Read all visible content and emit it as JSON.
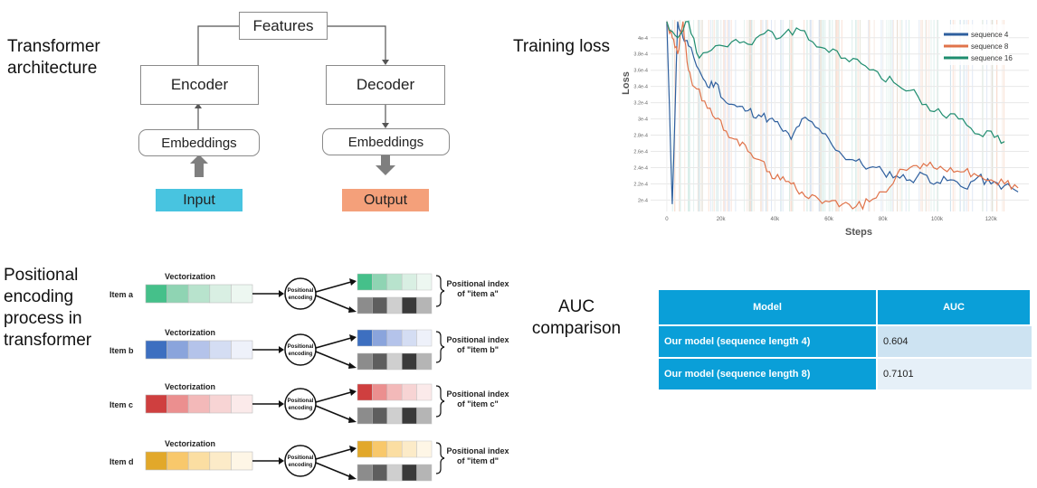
{
  "sections": {
    "architecture": "Transformer architecture",
    "loss": "Training loss",
    "positional": "Positional encoding process in transformer",
    "auc": "AUC comparison"
  },
  "arch": {
    "features": "Features",
    "encoder": "Encoder",
    "decoder": "Decoder",
    "embeddings_left": "Embeddings",
    "embeddings_right": "Embeddings",
    "input": "Input",
    "output": "Output",
    "input_color": "#48c4e0",
    "output_color": "#f4a07a"
  },
  "chart_data": {
    "type": "line",
    "xlabel": "Steps",
    "ylabel": "Loss",
    "x_ticks": [
      "0",
      "20k",
      "40k",
      "60k",
      "80k",
      "100k",
      "120k"
    ],
    "y_ticks": [
      "2e-4",
      "2.2e-4",
      "2.4e-4",
      "2.6e-4",
      "2.8e-4",
      "3e-4",
      "3.2e-4",
      "3.4e-4",
      "3.6e-4",
      "3.8e-4",
      "4e-4"
    ],
    "xlim": [
      -6000,
      134000
    ],
    "ylim": [
      0.000186,
      0.000422
    ],
    "legend_position": "top-right",
    "series": [
      {
        "name": "sequence 4",
        "color": "#2e5f9e",
        "x": [
          0,
          2000,
          4000,
          6000,
          8000,
          12000,
          15000,
          18000,
          22000,
          26000,
          30000,
          34000,
          38000,
          42000,
          46000,
          50000,
          55000,
          60000,
          65000,
          70000,
          75000,
          80000,
          85000,
          90000,
          95000,
          100000,
          105000,
          110000,
          115000,
          120000,
          125000,
          130000
        ],
        "y": [
          0.00042,
          0.000195,
          0.00042,
          0.0004,
          0.00039,
          0.00036,
          0.00034,
          0.000345,
          0.00032,
          0.000315,
          0.00031,
          0.000305,
          0.0003,
          0.00029,
          0.000275,
          0.0003,
          0.00029,
          0.000275,
          0.000255,
          0.000248,
          0.00024,
          0.000235,
          0.00023,
          0.000225,
          0.000232,
          0.000222,
          0.000225,
          0.000215,
          0.000228,
          0.00022,
          0.000218,
          0.00021
        ]
      },
      {
        "name": "sequence 8",
        "color": "#e0734a",
        "x": [
          0,
          2000,
          4000,
          6000,
          8000,
          10000,
          14000,
          18000,
          22000,
          26000,
          30000,
          34000,
          38000,
          42000,
          46000,
          50000,
          55000,
          60000,
          65000,
          70000,
          75000,
          80000,
          85000,
          90000,
          95000,
          100000,
          105000,
          110000,
          115000,
          120000,
          125000,
          130000
        ],
        "y": [
          0.00042,
          0.0004,
          0.00038,
          0.00042,
          0.00036,
          0.00034,
          0.000322,
          0.0003,
          0.000285,
          0.000275,
          0.00026,
          0.00025,
          0.000235,
          0.000225,
          0.00022,
          0.00021,
          0.000205,
          0.000198,
          0.000195,
          0.000192,
          0.000198,
          0.00021,
          0.00023,
          0.00024,
          0.000245,
          0.000238,
          0.00024,
          0.000235,
          0.00023,
          0.000225,
          0.00022,
          0.000215
        ]
      },
      {
        "name": "sequence 16",
        "color": "#1e8c6e",
        "x": [
          0,
          4000,
          8000,
          12000,
          18000,
          24000,
          30000,
          36000,
          42000,
          48000,
          54000,
          60000,
          66000,
          72000,
          78000,
          84000,
          90000,
          96000,
          102000,
          108000,
          114000,
          120000,
          125000
        ],
        "y": [
          0.00042,
          0.0004,
          0.00042,
          0.000375,
          0.00039,
          0.000395,
          0.000392,
          0.000405,
          0.0004,
          0.000412,
          0.000395,
          0.000382,
          0.000375,
          0.000368,
          0.000358,
          0.000345,
          0.000335,
          0.000318,
          0.000305,
          0.0003,
          0.000282,
          0.000285,
          0.000272
        ]
      }
    ]
  },
  "positional": {
    "vectorization": "Vectorization",
    "encoding_label": "Positional encoding",
    "index_label": "Positional index",
    "pos_greys": [
      "#8c8c8c",
      "#5e5e5e",
      "#cfcfcf",
      "#3a3a3a",
      "#b5b5b5"
    ],
    "items": [
      {
        "name": "Item a",
        "of": "of \"item a\"",
        "colors": [
          "#45c08a",
          "#8fd4b3",
          "#b8e3cd",
          "#d9efe3",
          "#edf7f1"
        ]
      },
      {
        "name": "Item b",
        "of": "of \"item b\"",
        "colors": [
          "#3d6fc0",
          "#8aa4dc",
          "#b4c3ea",
          "#d4ddf3",
          "#eef1fa"
        ]
      },
      {
        "name": "Item c",
        "of": "of \"item c\"",
        "colors": [
          "#cf3f3f",
          "#eb8f8f",
          "#f3b9b9",
          "#f7d4d4",
          "#fbeaea"
        ]
      },
      {
        "name": "Item d",
        "of": "of \"item d\"",
        "colors": [
          "#e2a82a",
          "#f8c86b",
          "#fbdea2",
          "#fcebc8",
          "#fef6e6"
        ]
      }
    ]
  },
  "auc_table": {
    "headers": [
      "Model",
      "AUC"
    ],
    "rows": [
      {
        "model": "Our model (sequence length 4)",
        "auc": "0.604"
      },
      {
        "model": "Our model (sequence length 8)",
        "auc": "0.7101"
      }
    ]
  }
}
